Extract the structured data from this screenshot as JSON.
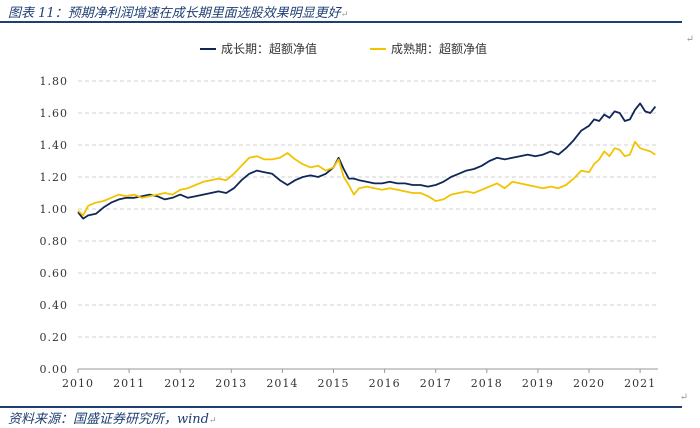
{
  "figure": {
    "title": "图表 11：预期净利润增速在成长期里面选股效果明显更好",
    "source": "资料来源：国盛证券研究所，wind"
  },
  "chart_data": {
    "type": "line",
    "xlabel": "",
    "ylabel": "",
    "ylim": [
      0,
      1.8
    ],
    "xlim": [
      2010,
      2021.35
    ],
    "grid": "horizontal dashed",
    "legend_position": "top-center",
    "y_ticks": [
      "0.00",
      "0.20",
      "0.40",
      "0.60",
      "0.80",
      "1.00",
      "1.20",
      "1.40",
      "1.60",
      "1.80"
    ],
    "x_ticks": [
      "2010",
      "2011",
      "2012",
      "2013",
      "2014",
      "2015",
      "2016",
      "2017",
      "2018",
      "2019",
      "2020",
      "2021"
    ],
    "series": [
      {
        "name": "成长期：超额净值",
        "color": "#0f2756",
        "x": [
          2010.0,
          2010.1,
          2010.2,
          2010.35,
          2010.5,
          2010.65,
          2010.8,
          2010.95,
          2011.1,
          2011.25,
          2011.4,
          2011.55,
          2011.7,
          2011.85,
          2012.0,
          2012.15,
          2012.3,
          2012.45,
          2012.6,
          2012.75,
          2012.9,
          2013.05,
          2013.2,
          2013.35,
          2013.5,
          2013.65,
          2013.8,
          2013.95,
          2014.1,
          2014.25,
          2014.4,
          2014.55,
          2014.7,
          2014.85,
          2015.0,
          2015.1,
          2015.2,
          2015.3,
          2015.4,
          2015.5,
          2015.65,
          2015.8,
          2015.95,
          2016.1,
          2016.25,
          2016.4,
          2016.55,
          2016.7,
          2016.85,
          2017.0,
          2017.15,
          2017.3,
          2017.45,
          2017.6,
          2017.75,
          2017.9,
          2018.05,
          2018.2,
          2018.35,
          2018.5,
          2018.65,
          2018.8,
          2018.95,
          2019.1,
          2019.25,
          2019.4,
          2019.55,
          2019.7,
          2019.85,
          2020.0,
          2020.1,
          2020.2,
          2020.3,
          2020.4,
          2020.5,
          2020.6,
          2020.7,
          2020.8,
          2020.9,
          2021.0,
          2021.1,
          2021.2,
          2021.3
        ],
        "values": [
          0.98,
          0.94,
          0.96,
          0.97,
          1.01,
          1.04,
          1.06,
          1.07,
          1.07,
          1.08,
          1.09,
          1.08,
          1.06,
          1.07,
          1.09,
          1.07,
          1.08,
          1.09,
          1.1,
          1.11,
          1.1,
          1.13,
          1.18,
          1.22,
          1.24,
          1.23,
          1.22,
          1.18,
          1.15,
          1.18,
          1.2,
          1.21,
          1.2,
          1.22,
          1.26,
          1.32,
          1.25,
          1.19,
          1.19,
          1.18,
          1.17,
          1.16,
          1.16,
          1.17,
          1.16,
          1.16,
          1.15,
          1.15,
          1.14,
          1.15,
          1.17,
          1.2,
          1.22,
          1.24,
          1.25,
          1.27,
          1.3,
          1.32,
          1.31,
          1.32,
          1.33,
          1.34,
          1.33,
          1.34,
          1.36,
          1.34,
          1.38,
          1.43,
          1.49,
          1.52,
          1.56,
          1.55,
          1.59,
          1.57,
          1.61,
          1.6,
          1.55,
          1.56,
          1.62,
          1.66,
          1.61,
          1.6,
          1.64
        ]
      },
      {
        "name": "成熟期：超额净值",
        "color": "#f3c300",
        "x": [
          2010.0,
          2010.1,
          2010.2,
          2010.35,
          2010.5,
          2010.65,
          2010.8,
          2010.95,
          2011.1,
          2011.25,
          2011.4,
          2011.55,
          2011.7,
          2011.85,
          2012.0,
          2012.15,
          2012.3,
          2012.45,
          2012.6,
          2012.75,
          2012.9,
          2013.05,
          2013.2,
          2013.35,
          2013.5,
          2013.65,
          2013.8,
          2013.95,
          2014.1,
          2014.25,
          2014.4,
          2014.55,
          2014.7,
          2014.85,
          2015.0,
          2015.1,
          2015.2,
          2015.3,
          2015.4,
          2015.5,
          2015.65,
          2015.8,
          2015.95,
          2016.1,
          2016.25,
          2016.4,
          2016.55,
          2016.7,
          2016.85,
          2017.0,
          2017.15,
          2017.3,
          2017.45,
          2017.6,
          2017.75,
          2017.9,
          2018.05,
          2018.2,
          2018.35,
          2018.5,
          2018.65,
          2018.8,
          2018.95,
          2019.1,
          2019.25,
          2019.4,
          2019.55,
          2019.7,
          2019.85,
          2020.0,
          2020.1,
          2020.2,
          2020.3,
          2020.4,
          2020.5,
          2020.6,
          2020.7,
          2020.8,
          2020.9,
          2021.0,
          2021.1,
          2021.2,
          2021.3
        ],
        "values": [
          0.99,
          0.96,
          1.02,
          1.04,
          1.05,
          1.07,
          1.09,
          1.08,
          1.09,
          1.07,
          1.08,
          1.09,
          1.1,
          1.09,
          1.12,
          1.13,
          1.15,
          1.17,
          1.18,
          1.19,
          1.18,
          1.22,
          1.27,
          1.32,
          1.33,
          1.31,
          1.31,
          1.32,
          1.35,
          1.31,
          1.28,
          1.26,
          1.27,
          1.24,
          1.26,
          1.31,
          1.2,
          1.15,
          1.09,
          1.13,
          1.14,
          1.13,
          1.12,
          1.13,
          1.12,
          1.11,
          1.1,
          1.1,
          1.08,
          1.05,
          1.06,
          1.09,
          1.1,
          1.11,
          1.1,
          1.12,
          1.14,
          1.16,
          1.13,
          1.17,
          1.16,
          1.15,
          1.14,
          1.13,
          1.14,
          1.13,
          1.15,
          1.19,
          1.24,
          1.23,
          1.28,
          1.31,
          1.36,
          1.33,
          1.38,
          1.37,
          1.33,
          1.34,
          1.42,
          1.38,
          1.37,
          1.36,
          1.34
        ]
      }
    ]
  }
}
